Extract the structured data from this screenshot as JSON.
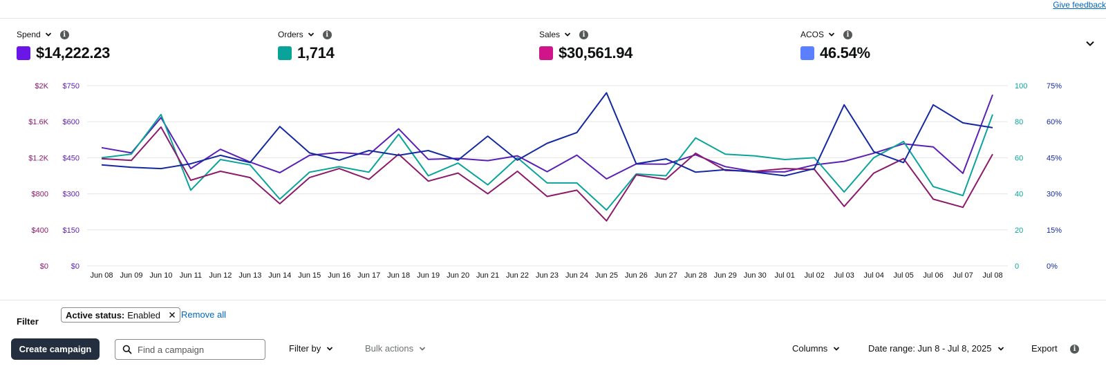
{
  "header": {
    "feedback_label": "Give feedback"
  },
  "metrics": [
    {
      "label": "Spend",
      "value": "$14,222.23",
      "color": "#6a16e6"
    },
    {
      "label": "Orders",
      "value": "1,714",
      "color": "#0aa39a"
    },
    {
      "label": "Sales",
      "value": "$30,561.94",
      "color": "#d0148a"
    },
    {
      "label": "ACOS",
      "value": "46.54%",
      "color": "#5a7fff"
    }
  ],
  "chart_data": {
    "type": "line",
    "x": [
      "Jun 08",
      "Jun 09",
      "Jun 10",
      "Jun 11",
      "Jun 12",
      "Jun 13",
      "Jun 14",
      "Jun 15",
      "Jun 16",
      "Jun 17",
      "Jun 18",
      "Jun 19",
      "Jun 20",
      "Jun 21",
      "Jun 22",
      "Jun 23",
      "Jun 24",
      "Jun 25",
      "Jun 26",
      "Jun 27",
      "Jun 28",
      "Jun 29",
      "Jun 30",
      "Jul 01",
      "Jul 02",
      "Jul 03",
      "Jul 04",
      "Jul 05",
      "Jul 06",
      "Jul 07",
      "Jul 08"
    ],
    "axes": {
      "sales_axis": {
        "ticks": [
          "$0",
          "$400",
          "$800",
          "$1.2K",
          "$1.6K",
          "$2K"
        ],
        "range": [
          0,
          2000
        ],
        "color": "#8b1a6b"
      },
      "spend_axis": {
        "ticks": [
          "$0",
          "$150",
          "$300",
          "$450",
          "$600",
          "$750"
        ],
        "range": [
          0,
          750
        ],
        "color": "#5a1fb4"
      },
      "orders_axis": {
        "ticks": [
          "0",
          "20",
          "40",
          "60",
          "80",
          "100"
        ],
        "range": [
          0,
          100
        ],
        "color": "#0aa39a"
      },
      "acos_axis": {
        "ticks": [
          "0%",
          "15%",
          "30%",
          "45%",
          "60%",
          "75%"
        ],
        "range": [
          0,
          75
        ],
        "color": "#1428a0"
      }
    },
    "grid": true,
    "series": [
      {
        "axis": "spend_axis",
        "color": "#5a1fb4",
        "values": [
          492,
          470,
          617,
          405,
          485,
          432,
          388,
          460,
          472,
          463,
          570,
          443,
          447,
          438,
          458,
          392,
          461,
          362,
          424,
          423,
          462,
          413,
          392,
          391,
          420,
          435,
          469,
          508,
          495,
          385,
          712
        ]
      },
      {
        "axis": "orders_axis",
        "color": "#0aa39a",
        "values": [
          60,
          62,
          84,
          42,
          59,
          56,
          37,
          52,
          55,
          52,
          73,
          50,
          57,
          45,
          60,
          46,
          46,
          31,
          51,
          50,
          71,
          62,
          61,
          59,
          60,
          41,
          60,
          69,
          44,
          39,
          84
        ]
      },
      {
        "axis": "sales_axis",
        "color": "#8b1a6b",
        "values": [
          1190,
          1170,
          1540,
          950,
          1050,
          980,
          690,
          980,
          1080,
          960,
          1240,
          940,
          1030,
          800,
          1050,
          770,
          840,
          500,
          1010,
          960,
          1250,
          1060,
          1050,
          1080,
          1070,
          660,
          1030,
          1190,
          740,
          650,
          1240
        ]
      },
      {
        "axis": "acos_axis",
        "color": "#1428a0",
        "values": [
          42,
          41,
          40.5,
          42.5,
          46,
          43,
          58,
          47,
          44,
          48,
          46,
          48,
          44,
          54,
          44,
          51,
          55.5,
          72,
          42.5,
          44.5,
          39,
          40,
          39,
          37.5,
          40.5,
          67,
          47.5,
          43,
          67,
          59.5,
          57.5
        ]
      }
    ]
  },
  "filter": {
    "label": "Filter",
    "chip_key": "Active status:",
    "chip_value": "Enabled",
    "remove_all": "Remove all"
  },
  "toolbar": {
    "create_label": "Create campaign",
    "search_placeholder": "Find a campaign",
    "filter_by": "Filter by",
    "bulk_actions": "Bulk actions",
    "columns": "Columns",
    "date_range": "Date range: Jun 8 - Jul 8, 2025",
    "export": "Export"
  }
}
